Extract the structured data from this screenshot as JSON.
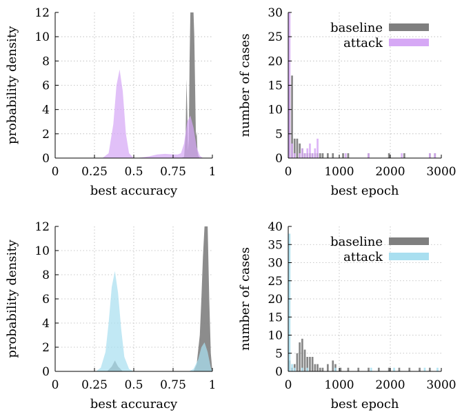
{
  "colors": {
    "baseline": "#7f7f7f",
    "attack_violet": "#d6a8f5",
    "attack_cyan": "#a9dff0"
  },
  "chart_data": [
    {
      "type": "area",
      "xlabel": "best accuracy",
      "ylabel": "probability density",
      "xlim": [
        0,
        1
      ],
      "ylim": [
        0,
        12
      ],
      "xticks": [
        0,
        0.25,
        0.5,
        0.75,
        1
      ],
      "xtick_labels": [
        "0",
        "0.25",
        "0.5",
        "0.75",
        "1"
      ],
      "yticks": [
        0,
        2,
        4,
        6,
        8,
        10,
        12
      ],
      "ytick_labels": [
        "0",
        "2",
        "4",
        "6",
        "8",
        "10",
        "12"
      ],
      "grid": true,
      "series": [
        {
          "color": "#7f7f7f",
          "x": [
            0,
            0.8,
            0.82,
            0.83,
            0.835,
            0.84,
            0.845,
            0.85,
            0.855,
            0.86,
            0.863,
            0.866,
            0.87,
            0.873,
            0.876,
            0.88,
            0.885,
            0.89,
            0.895,
            0.9,
            0.905,
            0.91,
            0.92,
            1
          ],
          "y": [
            0,
            0,
            0.1,
            2.0,
            6.5,
            4.0,
            0.6,
            1.5,
            8.0,
            12,
            12,
            12,
            12,
            12,
            12,
            12,
            10.0,
            6.0,
            1.8,
            2.2,
            0.6,
            0.2,
            0,
            0
          ]
        },
        {
          "color": "#d6a8f5",
          "x": [
            0,
            0.3,
            0.34,
            0.37,
            0.39,
            0.41,
            0.43,
            0.45,
            0.47,
            0.5,
            0.55,
            0.6,
            0.65,
            0.7,
            0.75,
            0.78,
            0.8,
            0.82,
            0.84,
            0.86,
            0.88,
            0.9,
            0.92,
            0.94,
            1
          ],
          "y": [
            0,
            0,
            0.4,
            2.8,
            6.0,
            7.3,
            5.5,
            2.0,
            0.4,
            0,
            0.05,
            0.15,
            0.3,
            0.35,
            0.3,
            0.3,
            0.4,
            1.2,
            3.0,
            3.5,
            2.5,
            0.9,
            0.2,
            0,
            0
          ]
        }
      ]
    },
    {
      "type": "bar",
      "xlabel": "best epoch",
      "ylabel": "number of cases",
      "xlim": [
        0,
        3000
      ],
      "ylim": [
        0,
        30
      ],
      "xticks": [
        0,
        1000,
        2000,
        3000
      ],
      "xtick_labels": [
        "0",
        "1000",
        "2000",
        "3000"
      ],
      "yticks": [
        0,
        5,
        10,
        15,
        20,
        25,
        30
      ],
      "ytick_labels": [
        "0",
        "5",
        "10",
        "15",
        "20",
        "25",
        "30"
      ],
      "grid": true,
      "legend_position": "top-right",
      "series": [
        {
          "name": "baseline",
          "color": "#7f7f7f",
          "x": [
            25,
            75,
            125,
            175,
            225,
            275,
            325,
            375,
            425,
            475,
            525,
            575,
            625,
            675,
            775,
            875,
            1075,
            1175,
            1575,
            1975,
            2275,
            2775,
            2875
          ],
          "values": [
            15,
            17,
            4,
            4,
            3,
            2,
            1,
            1,
            1,
            1,
            1,
            1,
            1,
            1,
            1,
            1,
            1,
            1,
            1,
            1,
            1,
            1,
            1
          ]
        },
        {
          "name": "attack",
          "color": "#d6a8f5",
          "x": [
            25,
            75,
            125,
            225,
            275,
            325,
            375,
            425,
            475,
            525,
            575,
            1125,
            1575,
            2225,
            2775,
            2875
          ],
          "values": [
            30,
            3,
            1,
            1,
            2,
            1,
            2,
            3,
            1,
            2,
            4,
            1,
            1,
            1,
            1,
            1
          ]
        }
      ]
    },
    {
      "type": "area",
      "xlabel": "best accuracy",
      "ylabel": "probability density",
      "xlim": [
        0,
        1
      ],
      "ylim": [
        0,
        12
      ],
      "xticks": [
        0,
        0.25,
        0.5,
        0.75,
        1
      ],
      "xtick_labels": [
        "0",
        "0.25",
        "0.5",
        "0.75",
        "1"
      ],
      "yticks": [
        0,
        2,
        4,
        6,
        8,
        10,
        12
      ],
      "ytick_labels": [
        "0",
        "2",
        "4",
        "6",
        "8",
        "10",
        "12"
      ],
      "grid": true,
      "series": [
        {
          "color": "#7f7f7f",
          "x": [
            0,
            0.33,
            0.36,
            0.38,
            0.4,
            0.43,
            0.88,
            0.9,
            0.92,
            0.93,
            0.94,
            0.95,
            0.96,
            0.97,
            0.98,
            0.99,
            1
          ],
          "y": [
            0,
            0,
            0.4,
            0.9,
            0.4,
            0,
            0,
            0.6,
            3.0,
            6.0,
            9.5,
            12,
            12,
            12,
            6.0,
            1.5,
            0
          ]
        },
        {
          "color": "#a9dff0",
          "x": [
            0,
            0.26,
            0.29,
            0.32,
            0.34,
            0.36,
            0.38,
            0.4,
            0.42,
            0.44,
            0.47,
            0.5,
            0.85,
            0.88,
            0.91,
            0.93,
            0.95,
            0.97,
            0.99,
            1
          ],
          "y": [
            0,
            0,
            0.3,
            1.6,
            4.0,
            7.0,
            8.3,
            6.5,
            3.5,
            1.2,
            0.2,
            0,
            0,
            0.2,
            1.0,
            2.0,
            2.4,
            1.6,
            0.3,
            0
          ]
        }
      ]
    },
    {
      "type": "bar",
      "xlabel": "best epoch",
      "ylabel": "number of cases",
      "xlim": [
        0,
        3000
      ],
      "ylim": [
        0,
        40
      ],
      "xticks": [
        0,
        1000,
        2000,
        3000
      ],
      "xtick_labels": [
        "0",
        "1000",
        "2000",
        "3000"
      ],
      "yticks": [
        0,
        5,
        10,
        15,
        20,
        25,
        30,
        35,
        40
      ],
      "ytick_labels": [
        "0",
        "5",
        "10",
        "15",
        "20",
        "25",
        "30",
        "35",
        "40"
      ],
      "grid": true,
      "legend_position": "top-right",
      "series": [
        {
          "name": "baseline",
          "color": "#7f7f7f",
          "x": [
            25,
            75,
            125,
            175,
            225,
            275,
            325,
            375,
            425,
            475,
            525,
            575,
            625,
            675,
            775,
            875,
            925,
            1025,
            1175,
            1375,
            1575,
            1775,
            1975,
            2175,
            2375,
            2575,
            2775
          ],
          "values": [
            3,
            1,
            2,
            5,
            8,
            9,
            6,
            4,
            4,
            4,
            2,
            2,
            1,
            1,
            2,
            3,
            2,
            1,
            1,
            1,
            1,
            1,
            1,
            1,
            1,
            1,
            1
          ]
        },
        {
          "name": "attack",
          "color": "#a9dff0",
          "x": [
            25,
            75,
            125,
            275,
            375,
            925,
            1625,
            2075,
            2675,
            2925
          ],
          "values": [
            38,
            2,
            1,
            1,
            1,
            1,
            1,
            1,
            1,
            1
          ]
        }
      ]
    }
  ]
}
